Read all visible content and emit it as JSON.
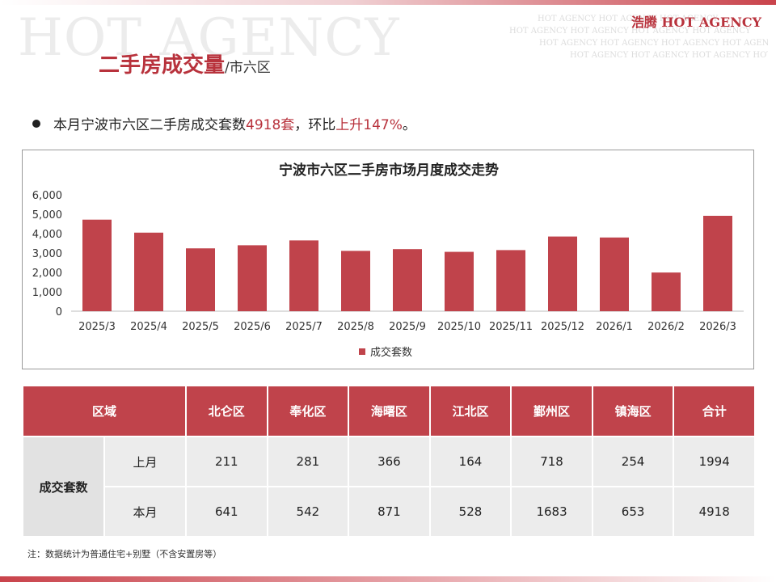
{
  "brand": {
    "watermark": "HOT AGENCY",
    "watermark_rows": [
      "HOT AGENCY    HOT AGENCY    HOT AGENCY",
      "HOT AGENCY    HOT AGENCY    HOT AGENCY    HOT AGENCY",
      "HOT AGENCY    HOT AGENCY    HOT AGENCY    HOT AGENCY",
      "HOT AGENCY    HOT AGENCY    HOT AGENCY    HOT AGENCY    HOT"
    ],
    "logo": "浩腾 HOT AGENCY"
  },
  "header": {
    "title": "二手房成交量",
    "subtitle": "/市六区"
  },
  "summary": {
    "prefix": "本月宁波市六区二手房成交套数",
    "count": "4918套",
    "middle": "，环比",
    "change": "上升147%",
    "suffix": "。"
  },
  "chart_data": {
    "type": "bar",
    "title": "宁波市六区二手房市场月度成交走势",
    "categories": [
      "2025/3",
      "2025/4",
      "2025/5",
      "2025/6",
      "2025/7",
      "2025/8",
      "2025/9",
      "2025/10",
      "2025/11",
      "2025/12",
      "2026/1",
      "2026/2",
      "2026/3"
    ],
    "series": [
      {
        "name": "成交套数",
        "values": [
          4720,
          4050,
          3240,
          3400,
          3650,
          3110,
          3200,
          3060,
          3150,
          3850,
          3800,
          1994,
          4918
        ]
      }
    ],
    "ylim": [
      0,
      6000
    ],
    "yticks": [
      "0",
      "1,000",
      "2,000",
      "3,000",
      "4,000",
      "5,000",
      "6,000"
    ],
    "legend_position": "bottom",
    "grid": false,
    "bar_color": "#c0434b"
  },
  "table": {
    "header": [
      "区域",
      "北仑区",
      "奉化区",
      "海曙区",
      "江北区",
      "鄞州区",
      "镇海区",
      "合计"
    ],
    "row_group": "成交套数",
    "rows": [
      {
        "label": "上月",
        "values": [
          "211",
          "281",
          "366",
          "164",
          "718",
          "254",
          "1994"
        ]
      },
      {
        "label": "本月",
        "values": [
          "641",
          "542",
          "871",
          "528",
          "1683",
          "653",
          "4918"
        ]
      }
    ]
  },
  "footnote": "注：数据统计为普通住宅+别墅（不含安置房等）",
  "colors": {
    "accent": "#c0434b",
    "cell": "#ececec"
  }
}
